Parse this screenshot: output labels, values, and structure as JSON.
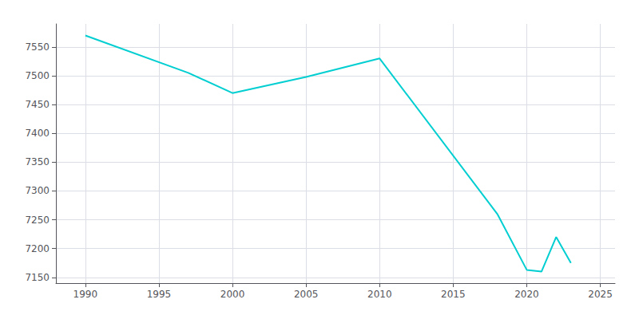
{
  "chart_data": {
    "type": "line",
    "x": [
      1990,
      1997,
      2000,
      2005,
      2010,
      2018,
      2020,
      2021,
      2022,
      2023
    ],
    "values": [
      7570,
      7505,
      7470,
      7498,
      7530,
      7260,
      7163,
      7160,
      7220,
      7175
    ],
    "color": "#00CED1",
    "xlim": [
      1988,
      2026
    ],
    "xticks": [
      1990,
      1995,
      2000,
      2005,
      2010,
      2015,
      2020,
      2025
    ],
    "ylim": [
      7140,
      7590
    ],
    "yticks": [
      7150,
      7200,
      7250,
      7300,
      7350,
      7400,
      7450,
      7500,
      7550
    ],
    "grid": true
  }
}
